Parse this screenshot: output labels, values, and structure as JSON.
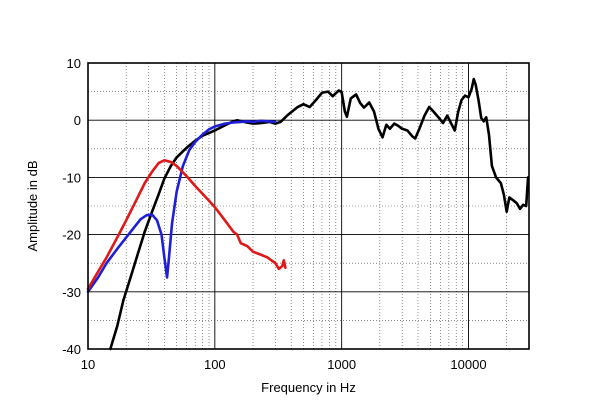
{
  "chart_data": {
    "type": "line",
    "title": "",
    "xlabel": "Frequency in Hz",
    "ylabel": "Amplitude in dB",
    "x_scale": "log",
    "xlim": [
      10,
      30000
    ],
    "ylim": [
      -40,
      10
    ],
    "x_ticks": [
      10,
      100,
      1000,
      10000
    ],
    "x_tick_labels": [
      "10",
      "100",
      "1000",
      "10000"
    ],
    "y_ticks": [
      10,
      0,
      -10,
      -20,
      -30,
      -40
    ],
    "y_tick_labels": [
      "10",
      "0",
      "-10",
      "-20",
      "-30",
      "-40"
    ],
    "grid": true,
    "legend": "none",
    "series": [
      {
        "color": "#000000",
        "points": [
          [
            15,
            -40
          ],
          [
            17,
            -36
          ],
          [
            19,
            -31.5
          ],
          [
            22,
            -27
          ],
          [
            25,
            -23
          ],
          [
            28,
            -19.5
          ],
          [
            32,
            -16
          ],
          [
            36,
            -13
          ],
          [
            40,
            -10.2
          ],
          [
            45,
            -8
          ],
          [
            50,
            -6.5
          ],
          [
            60,
            -4.8
          ],
          [
            70,
            -3.6
          ],
          [
            80,
            -2.7
          ],
          [
            100,
            -1.8
          ],
          [
            120,
            -0.9
          ],
          [
            140,
            -0.2
          ],
          [
            150,
            0
          ],
          [
            170,
            -0.3
          ],
          [
            200,
            -0.6
          ],
          [
            230,
            -0.5
          ],
          [
            270,
            -0.3
          ],
          [
            300,
            -0.6
          ],
          [
            330,
            -0.3
          ],
          [
            380,
            1
          ],
          [
            450,
            2.3
          ],
          [
            500,
            2.8
          ],
          [
            560,
            2.3
          ],
          [
            620,
            3.4
          ],
          [
            700,
            4.8
          ],
          [
            780,
            5
          ],
          [
            850,
            4.2
          ],
          [
            950,
            5.2
          ],
          [
            1000,
            4.9
          ],
          [
            1060,
            1.5
          ],
          [
            1100,
            0.6
          ],
          [
            1180,
            3.8
          ],
          [
            1300,
            4.5
          ],
          [
            1400,
            3
          ],
          [
            1500,
            2.2
          ],
          [
            1650,
            3.1
          ],
          [
            1800,
            1.5
          ],
          [
            1950,
            -1.5
          ],
          [
            2100,
            -3
          ],
          [
            2250,
            -0.8
          ],
          [
            2400,
            -1.5
          ],
          [
            2600,
            -0.6
          ],
          [
            2800,
            -1
          ],
          [
            3000,
            -1.5
          ],
          [
            3300,
            -1.8
          ],
          [
            3600,
            -2.8
          ],
          [
            3800,
            -3.2
          ],
          [
            4100,
            -1.5
          ],
          [
            4500,
            0.8
          ],
          [
            4900,
            2.3
          ],
          [
            5300,
            1.5
          ],
          [
            5800,
            0.5
          ],
          [
            6300,
            -0.5
          ],
          [
            6800,
            0.8
          ],
          [
            7200,
            -0.3
          ],
          [
            7800,
            -1.8
          ],
          [
            8300,
            1.5
          ],
          [
            8800,
            3.5
          ],
          [
            9400,
            4.3
          ],
          [
            10000,
            4
          ],
          [
            10600,
            5.5
          ],
          [
            11000,
            7.2
          ],
          [
            11400,
            6.2
          ],
          [
            12000,
            3.5
          ],
          [
            12600,
            0.4
          ],
          [
            13200,
            -0.2
          ],
          [
            13800,
            0.5
          ],
          [
            14500,
            -2.5
          ],
          [
            15300,
            -8
          ],
          [
            16500,
            -10
          ],
          [
            18000,
            -11
          ],
          [
            19000,
            -13
          ],
          [
            20000,
            -16
          ],
          [
            21000,
            -13.5
          ],
          [
            22500,
            -14
          ],
          [
            24000,
            -14.5
          ],
          [
            25500,
            -15.5
          ],
          [
            27000,
            -14.8
          ],
          [
            28500,
            -15
          ],
          [
            29500,
            -10
          ]
        ]
      },
      {
        "color": "#1f1fd8",
        "points": [
          [
            10,
            -30
          ],
          [
            12,
            -27.5
          ],
          [
            14,
            -25
          ],
          [
            17,
            -22.5
          ],
          [
            20,
            -20.5
          ],
          [
            23,
            -18.8
          ],
          [
            26,
            -17.3
          ],
          [
            29,
            -16.6
          ],
          [
            32,
            -16.5
          ],
          [
            35,
            -17.5
          ],
          [
            38,
            -20
          ],
          [
            40,
            -24
          ],
          [
            42,
            -27.5
          ],
          [
            43.5,
            -24
          ],
          [
            46,
            -18
          ],
          [
            50,
            -12.5
          ],
          [
            56,
            -8
          ],
          [
            63,
            -5.2
          ],
          [
            70,
            -3.8
          ],
          [
            80,
            -2.5
          ],
          [
            90,
            -1.6
          ],
          [
            100,
            -1.1
          ],
          [
            120,
            -0.6
          ],
          [
            140,
            -0.4
          ],
          [
            160,
            -0.3
          ],
          [
            180,
            -0.2
          ],
          [
            200,
            -0.3
          ],
          [
            230,
            -0.1
          ],
          [
            260,
            -0.2
          ],
          [
            300,
            -0.3
          ]
        ]
      },
      {
        "color": "#e01818",
        "points": [
          [
            10,
            -29.5
          ],
          [
            12,
            -26.5
          ],
          [
            14,
            -24
          ],
          [
            17,
            -20.5
          ],
          [
            20,
            -17.5
          ],
          [
            24,
            -14
          ],
          [
            28,
            -11
          ],
          [
            32,
            -9
          ],
          [
            36,
            -7.5
          ],
          [
            40,
            -7
          ],
          [
            45,
            -7.3
          ],
          [
            50,
            -8
          ],
          [
            60,
            -9.8
          ],
          [
            70,
            -11.5
          ],
          [
            85,
            -13.5
          ],
          [
            100,
            -15.2
          ],
          [
            120,
            -17.5
          ],
          [
            140,
            -19.5
          ],
          [
            150,
            -20
          ],
          [
            160,
            -21.5
          ],
          [
            180,
            -22
          ],
          [
            200,
            -23
          ],
          [
            230,
            -23.5
          ],
          [
            260,
            -24
          ],
          [
            300,
            -25
          ],
          [
            320,
            -26
          ],
          [
            340,
            -25.5
          ],
          [
            350,
            -24.5
          ],
          [
            360,
            -25.8
          ]
        ]
      }
    ]
  }
}
